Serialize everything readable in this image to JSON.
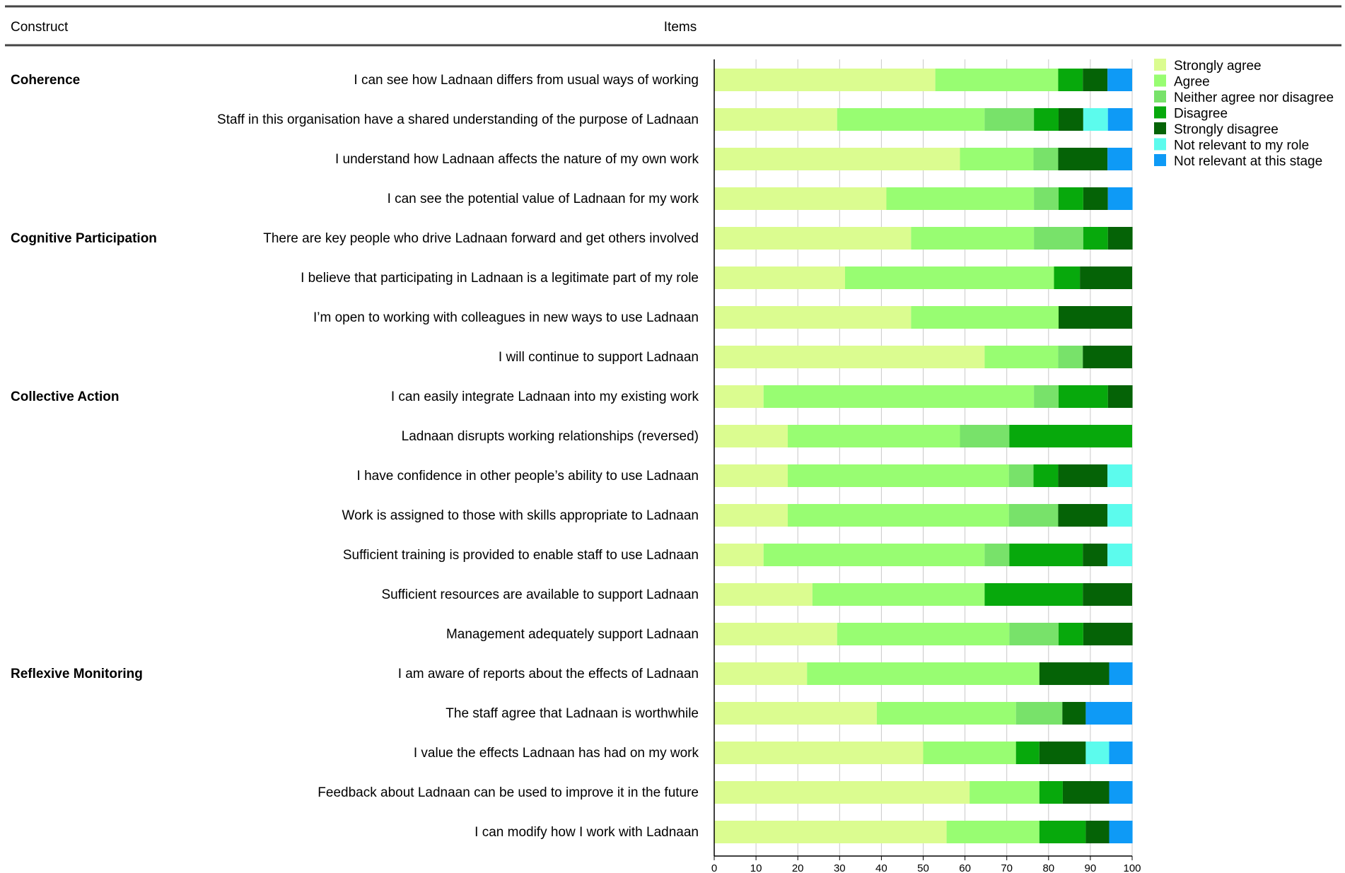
{
  "chart_data": {
    "type": "bar",
    "orientation": "horizontal",
    "stacked": true,
    "title": "",
    "header": {
      "construct": "Construct",
      "items": "Items"
    },
    "xlabel": "",
    "ylabel": "",
    "xlim": [
      0,
      100
    ],
    "x_ticks": [
      "0",
      "10",
      "20",
      "30",
      "40",
      "50",
      "60",
      "70",
      "80",
      "90",
      "100"
    ],
    "grid": true,
    "legend_position": "top-right",
    "constructs": [
      {
        "label": "Coherence",
        "first_row": 0
      },
      {
        "label": "Cognitive Participation",
        "first_row": 4
      },
      {
        "label": "Collective Action",
        "first_row": 8
      },
      {
        "label": "Reflexive Monitoring",
        "first_row": 15
      }
    ],
    "categories": [
      "I can see how Ladnaan differs from usual ways of working",
      "Staff in this organisation have a shared understanding of the purpose of Ladnaan",
      "I understand how Ladnaan affects the nature of my own work",
      "I can see the potential value of Ladnaan for my work",
      "There are key people who drive Ladnaan forward and get others involved",
      "I believe that participating in Ladnaan is a legitimate part of my role",
      "I’m open to working with colleagues in new ways to use Ladnaan",
      "I will continue to support Ladnaan",
      "I can easily integrate Ladnaan into my existing work",
      "Ladnaan disrupts working relationships (reversed)",
      "I have confidence in other people’s ability to use Ladnaan",
      "Work is assigned to those with skills appropriate to Ladnaan",
      "Sufficient training is provided to enable staff to use Ladnaan",
      "Sufficient resources are available to support Ladnaan",
      "Management adequately support Ladnaan",
      "I am aware of reports about the effects of Ladnaan",
      "The staff agree that Ladnaan is worthwhile",
      "I value the effects Ladnaan has had on my work",
      "Feedback about Ladnaan can be used to improve it in the future",
      "I can modify how I work with Ladnaan"
    ],
    "series": [
      {
        "name": "Strongly agree",
        "color": "#dbfc90",
        "values": [
          52.9,
          29.4,
          58.8,
          41.2,
          47.1,
          31.3,
          47.1,
          64.7,
          11.8,
          17.6,
          17.6,
          17.6,
          11.8,
          23.5,
          29.4,
          22.2,
          38.9,
          50.0,
          61.1,
          55.6
        ]
      },
      {
        "name": "Agree",
        "color": "#98fd72",
        "values": [
          29.4,
          35.3,
          17.6,
          35.3,
          29.4,
          50.0,
          35.3,
          17.6,
          64.7,
          41.2,
          52.9,
          52.9,
          52.9,
          41.2,
          41.2,
          55.6,
          33.3,
          22.2,
          16.7,
          22.2
        ]
      },
      {
        "name": "Neither agree nor disagree",
        "color": "#78e26a",
        "values": [
          0,
          11.8,
          5.9,
          5.9,
          11.8,
          0,
          0,
          5.9,
          5.9,
          11.8,
          5.9,
          11.8,
          5.9,
          0,
          11.8,
          0,
          11.1,
          0,
          0,
          0
        ]
      },
      {
        "name": "Disagree",
        "color": "#07a90c",
        "values": [
          5.9,
          5.9,
          0,
          5.9,
          5.9,
          6.2,
          0,
          0,
          11.8,
          29.4,
          5.9,
          0,
          17.6,
          23.5,
          5.9,
          0,
          0,
          5.6,
          5.6,
          11.1
        ]
      },
      {
        "name": "Strongly disagree",
        "color": "#056306",
        "values": [
          5.9,
          5.9,
          11.8,
          5.9,
          5.9,
          12.5,
          17.6,
          11.8,
          5.9,
          0,
          11.8,
          11.8,
          5.9,
          11.8,
          11.8,
          16.7,
          5.6,
          11.1,
          11.1,
          5.6
        ]
      },
      {
        "name": "Not relevant to my role",
        "color": "#5cfbed",
        "values": [
          0,
          5.9,
          0,
          0,
          0,
          0,
          0,
          0,
          0,
          0,
          5.9,
          5.9,
          5.9,
          0,
          0,
          0,
          0,
          5.6,
          0,
          0
        ]
      },
      {
        "name": "Not relevant at this stage",
        "color": "#0e9af6",
        "values": [
          5.9,
          5.9,
          5.9,
          5.9,
          0,
          0,
          0,
          0,
          0,
          0,
          0,
          0,
          0,
          0,
          0,
          5.6,
          11.1,
          5.6,
          5.6,
          5.6
        ]
      }
    ]
  }
}
